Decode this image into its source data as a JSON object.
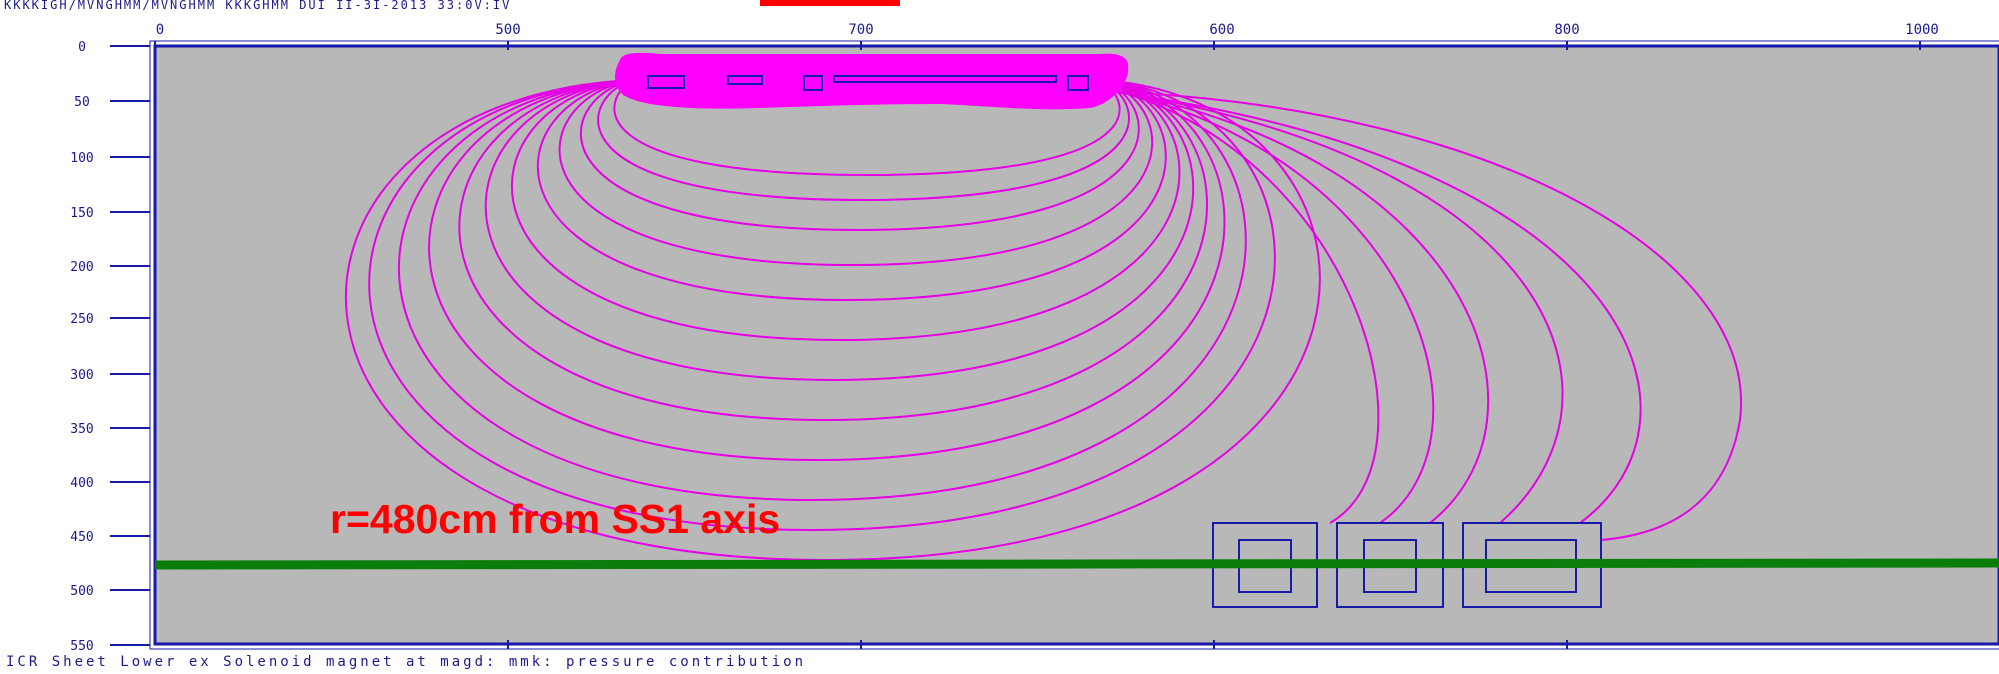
{
  "header": {
    "text": "KKKKIGH/MVNGHMM/MVNGHMM KKKGHMM DUI II-3I-2013 33:0V:IV"
  },
  "axes": {
    "x_ticks": [
      "0",
      "500",
      "700",
      "600",
      "800",
      "1000"
    ],
    "y_ticks": [
      "0",
      "50",
      "100",
      "150",
      "200",
      "250",
      "300",
      "350",
      "400",
      "450",
      "500",
      "550"
    ]
  },
  "annotation": "r=480cm from SS1 axis",
  "footer": {
    "text": "ICR Sheet Lower ex Solenoid magnet at magd: mmk: pressure contribution"
  },
  "colors": {
    "plot_background": "#b8b8b8",
    "field_lines": "#e600e6",
    "coil_outline": "#1a1aa8",
    "axis_frame": "#1a1aa8",
    "reference_line": "#0b7d0b",
    "annotation": "#ff0000"
  }
}
